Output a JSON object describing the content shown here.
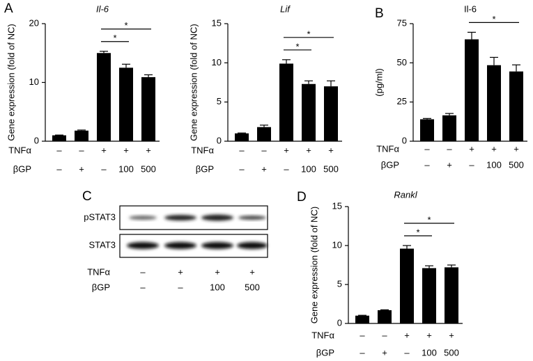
{
  "panels": [
    "A",
    "B",
    "C",
    "D"
  ],
  "chart_data": [
    {
      "type": "bar",
      "title": "Il-6",
      "title_italic": true,
      "ylabel": "Gene expression (fold of NC)",
      "categories": [
        null,
        null,
        null,
        null,
        null
      ],
      "values": [
        1.0,
        1.8,
        15.0,
        12.5,
        10.9
      ],
      "errors": [
        0.05,
        0.1,
        0.3,
        0.6,
        0.4
      ],
      "color": "#000000",
      "ylim": [
        0,
        20
      ],
      "yticks": [
        0,
        10,
        20
      ],
      "treatments": [
        {
          "label": "TNFα",
          "values": [
            "–",
            "–",
            "+",
            "+",
            "+"
          ]
        },
        {
          "label": "βGP",
          "values": [
            "–",
            "+",
            "–",
            "100",
            "500"
          ]
        }
      ],
      "significance": [
        {
          "categories": [
            2,
            3
          ],
          "label": "*"
        },
        {
          "categories": [
            2,
            4
          ],
          "label": "*"
        }
      ]
    },
    {
      "type": "bar",
      "title": "Lif",
      "title_italic": true,
      "ylabel": "Gene expression (fold of NC)",
      "categories": [
        null,
        null,
        null,
        null,
        null
      ],
      "values": [
        1.0,
        1.8,
        9.9,
        7.3,
        7.0
      ],
      "errors": [
        0.05,
        0.25,
        0.5,
        0.4,
        0.7
      ],
      "color": "#000000",
      "ylim": [
        0,
        15
      ],
      "yticks": [
        0,
        5,
        10,
        15
      ],
      "treatments": [
        {
          "label": "TNFα",
          "values": [
            "–",
            "–",
            "+",
            "+",
            "+"
          ]
        },
        {
          "label": "βGP",
          "values": [
            "–",
            "+",
            "–",
            "100",
            "500"
          ]
        }
      ],
      "significance": [
        {
          "categories": [
            2,
            3
          ],
          "label": "*"
        },
        {
          "categories": [
            2,
            4
          ],
          "label": "*"
        }
      ]
    },
    {
      "type": "bar",
      "title": "Il-6",
      "title_italic": false,
      "ylabel": "(pg/ml)",
      "categories": [
        null,
        null,
        null,
        null,
        null
      ],
      "values": [
        14,
        16.5,
        65,
        48.5,
        44.5
      ],
      "errors": [
        0.5,
        1.2,
        4.5,
        5,
        4.2
      ],
      "color": "#000000",
      "ylim": [
        0,
        75
      ],
      "yticks": [
        0,
        25,
        50,
        75
      ],
      "treatments": [
        {
          "label": "TNFα",
          "values": [
            "–",
            "–",
            "+",
            "+",
            "+"
          ]
        },
        {
          "label": "βGP",
          "values": [
            "–",
            "+",
            "–",
            "100",
            "500"
          ]
        }
      ],
      "significance": [
        {
          "categories": [
            2,
            4
          ],
          "label": "*"
        }
      ]
    },
    {
      "type": "bar",
      "title": "Rankl",
      "title_italic": true,
      "ylabel": "Gene expression (fold of NC)",
      "categories": [
        null,
        null,
        null,
        null,
        null
      ],
      "values": [
        1.0,
        1.7,
        9.6,
        7.1,
        7.2
      ],
      "errors": [
        0.05,
        0.05,
        0.4,
        0.3,
        0.3
      ],
      "color": "#000000",
      "ylim": [
        0,
        15
      ],
      "yticks": [
        0,
        5,
        10,
        15
      ],
      "treatments": [
        {
          "label": "TNFα",
          "values": [
            "–",
            "–",
            "+",
            "+",
            "+"
          ]
        },
        {
          "label": "βGP",
          "values": [
            "–",
            "+",
            "–",
            "100",
            "500"
          ]
        }
      ],
      "significance": [
        {
          "categories": [
            2,
            3
          ],
          "label": "*"
        },
        {
          "categories": [
            2,
            4
          ],
          "label": "*"
        }
      ]
    }
  ],
  "blot": {
    "bands": [
      "pSTAT3",
      "STAT3"
    ],
    "treatments": [
      {
        "label": "TNFα",
        "values": [
          "–",
          "+",
          "+",
          "+"
        ]
      },
      {
        "label": "βGP",
        "values": [
          "–",
          "–",
          "100",
          "500"
        ]
      }
    ]
  }
}
